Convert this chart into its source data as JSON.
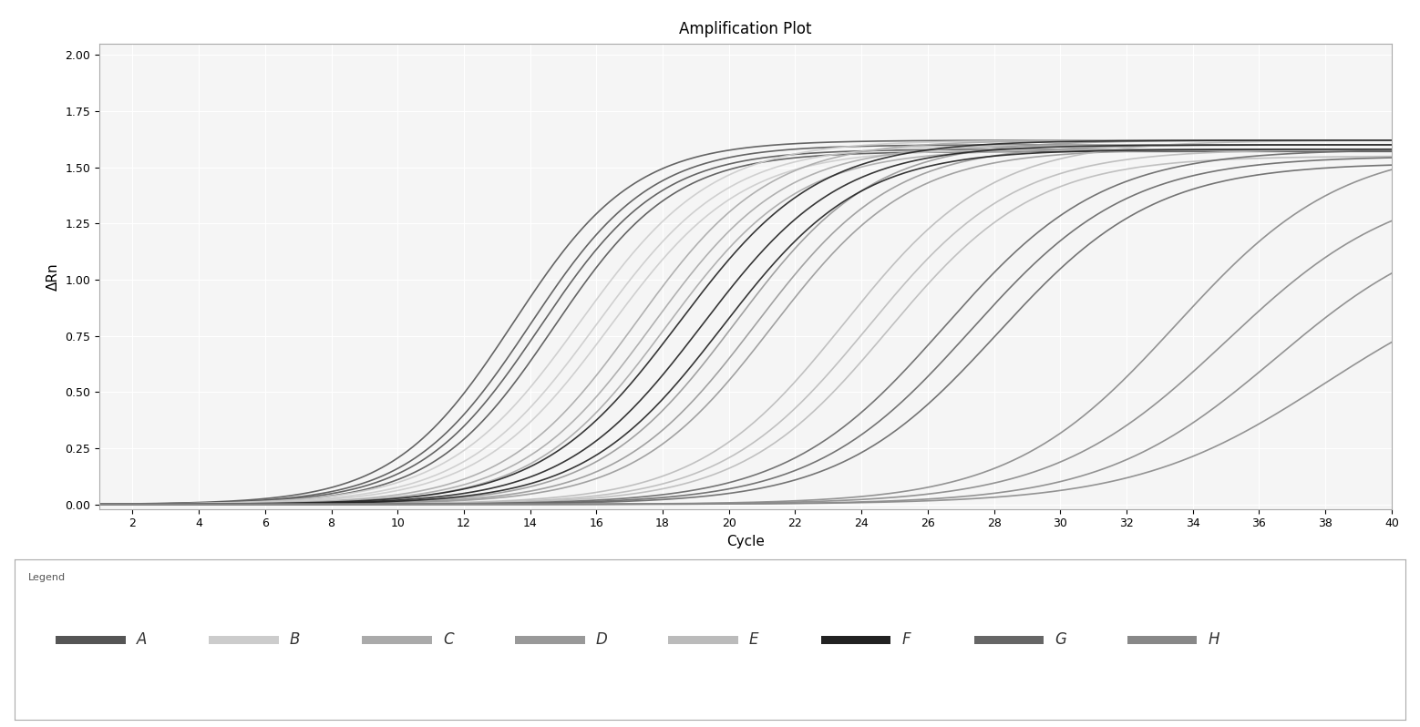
{
  "title": "Amplification Plot",
  "xlabel": "Cycle",
  "ylabel": "ΔRn",
  "xlim": [
    1,
    40
  ],
  "ylim": [
    -0.02,
    2.05
  ],
  "xticks": [
    2,
    4,
    6,
    8,
    10,
    12,
    14,
    16,
    18,
    20,
    22,
    24,
    26,
    28,
    30,
    32,
    34,
    36,
    38,
    40
  ],
  "yticks": [
    0.0,
    0.25,
    0.5,
    0.75,
    1.0,
    1.25,
    1.5,
    1.75,
    2.0
  ],
  "background_color": "#ffffff",
  "plot_bg_color": "#f5f5f5",
  "grid_color": "#ffffff",
  "legend_labels": [
    "A",
    "B",
    "C",
    "D",
    "E",
    "F",
    "G",
    "H"
  ],
  "groups": [
    {
      "label": "A",
      "color": "#555555",
      "curves": [
        {
          "midpoint": 13.5,
          "L": 1.62,
          "k": 0.55
        },
        {
          "midpoint": 14.0,
          "L": 1.6,
          "k": 0.55
        },
        {
          "midpoint": 14.3,
          "L": 1.58,
          "k": 0.55
        },
        {
          "midpoint": 14.7,
          "L": 1.57,
          "k": 0.55
        }
      ]
    },
    {
      "label": "B",
      "color": "#cccccc",
      "curves": [
        {
          "midpoint": 15.5,
          "L": 1.62,
          "k": 0.5
        },
        {
          "midpoint": 16.0,
          "L": 1.6,
          "k": 0.5
        },
        {
          "midpoint": 16.4,
          "L": 1.58,
          "k": 0.5
        }
      ]
    },
    {
      "label": "C",
      "color": "#aaaaaa",
      "curves": [
        {
          "midpoint": 17.2,
          "L": 1.62,
          "k": 0.5
        },
        {
          "midpoint": 17.7,
          "L": 1.6,
          "k": 0.5
        },
        {
          "midpoint": 18.1,
          "L": 1.58,
          "k": 0.5
        }
      ]
    },
    {
      "label": "D",
      "color": "#999999",
      "curves": [
        {
          "midpoint": 20.2,
          "L": 1.62,
          "k": 0.48
        },
        {
          "midpoint": 20.8,
          "L": 1.6,
          "k": 0.48
        },
        {
          "midpoint": 21.3,
          "L": 1.58,
          "k": 0.48
        }
      ]
    },
    {
      "label": "E",
      "color": "#bbbbbb",
      "curves": [
        {
          "midpoint": 23.5,
          "L": 1.62,
          "k": 0.45
        },
        {
          "midpoint": 24.2,
          "L": 1.58,
          "k": 0.45
        },
        {
          "midpoint": 24.8,
          "L": 1.55,
          "k": 0.45
        }
      ]
    },
    {
      "label": "F",
      "color": "#222222",
      "curves": [
        {
          "midpoint": 18.5,
          "L": 1.62,
          "k": 0.48
        },
        {
          "midpoint": 19.2,
          "L": 1.6,
          "k": 0.48
        },
        {
          "midpoint": 19.8,
          "L": 1.58,
          "k": 0.48
        }
      ]
    },
    {
      "label": "G",
      "color": "#666666",
      "curves": [
        {
          "midpoint": 26.5,
          "L": 1.58,
          "k": 0.42
        },
        {
          "midpoint": 27.3,
          "L": 1.55,
          "k": 0.42
        },
        {
          "midpoint": 28.1,
          "L": 1.52,
          "k": 0.42
        }
      ]
    },
    {
      "label": "H",
      "color": "#888888",
      "curves": [
        {
          "midpoint": 33.5,
          "L": 1.6,
          "k": 0.4
        },
        {
          "midpoint": 35.0,
          "L": 1.45,
          "k": 0.38
        },
        {
          "midpoint": 36.5,
          "L": 1.3,
          "k": 0.38
        },
        {
          "midpoint": 38.0,
          "L": 1.08,
          "k": 0.35
        }
      ]
    }
  ]
}
